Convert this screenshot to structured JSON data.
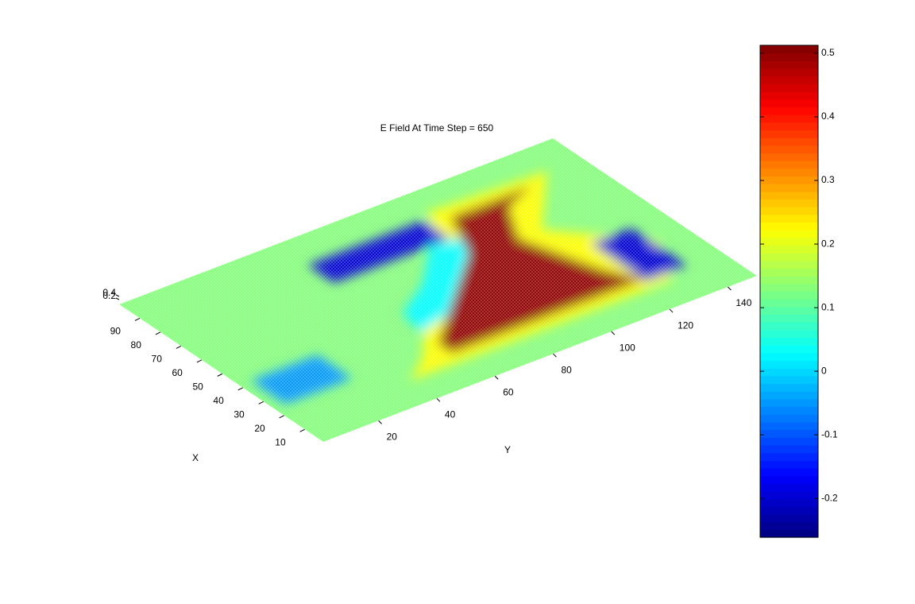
{
  "chart_data": {
    "type": "surface",
    "title": "E Field At Time Step = 650",
    "xlabel": "X",
    "ylabel": "Y",
    "xlim": [
      1,
      100
    ],
    "ylim": [
      1,
      150
    ],
    "xticks": [
      10,
      20,
      30,
      40,
      50,
      60,
      70,
      80,
      90
    ],
    "yticks": [
      20,
      40,
      60,
      80,
      100,
      120,
      140
    ],
    "zticks": [
      0.2,
      0.4
    ],
    "clim": [
      -0.261,
      0.5125
    ],
    "cticks": [
      -0.2,
      -0.1,
      0,
      0.1,
      0.2,
      0.3,
      0.4,
      0.5
    ],
    "colormap": "jet",
    "background_value": 0.13,
    "regions": [
      {
        "value": 0.22,
        "points": [
          [
            14,
            25
          ],
          [
            14,
            130
          ],
          [
            35,
            140
          ],
          [
            60,
            118
          ],
          [
            86,
            138
          ],
          [
            88,
            98
          ],
          [
            60,
            88
          ],
          [
            38,
            62
          ],
          [
            22,
            50
          ],
          [
            14,
            40
          ]
        ]
      },
      {
        "value": 0.03,
        "points": [
          [
            34,
            58
          ],
          [
            40,
            78
          ],
          [
            55,
            96
          ],
          [
            70,
            102
          ],
          [
            72,
            88
          ],
          [
            56,
            74
          ],
          [
            46,
            60
          ]
        ]
      },
      {
        "value": 0.5,
        "points": [
          [
            19,
            58
          ],
          [
            19,
            124
          ],
          [
            32,
            118
          ],
          [
            60,
            110
          ],
          [
            76,
            118
          ],
          [
            82,
            130
          ],
          [
            82,
            102
          ],
          [
            62,
            94
          ],
          [
            38,
            70
          ],
          [
            26,
            58
          ]
        ]
      },
      {
        "value": -0.05,
        "points": [
          [
            25,
            5
          ],
          [
            42,
            5
          ],
          [
            42,
            28
          ],
          [
            25,
            28
          ]
        ]
      },
      {
        "value": -0.2,
        "points": [
          [
            72,
            55
          ],
          [
            85,
            55
          ],
          [
            85,
            95
          ],
          [
            72,
            95
          ]
        ]
      },
      {
        "value": -0.2,
        "points": [
          [
            18,
            124
          ],
          [
            45,
            124
          ],
          [
            45,
            138
          ],
          [
            18,
            138
          ]
        ]
      }
    ]
  }
}
